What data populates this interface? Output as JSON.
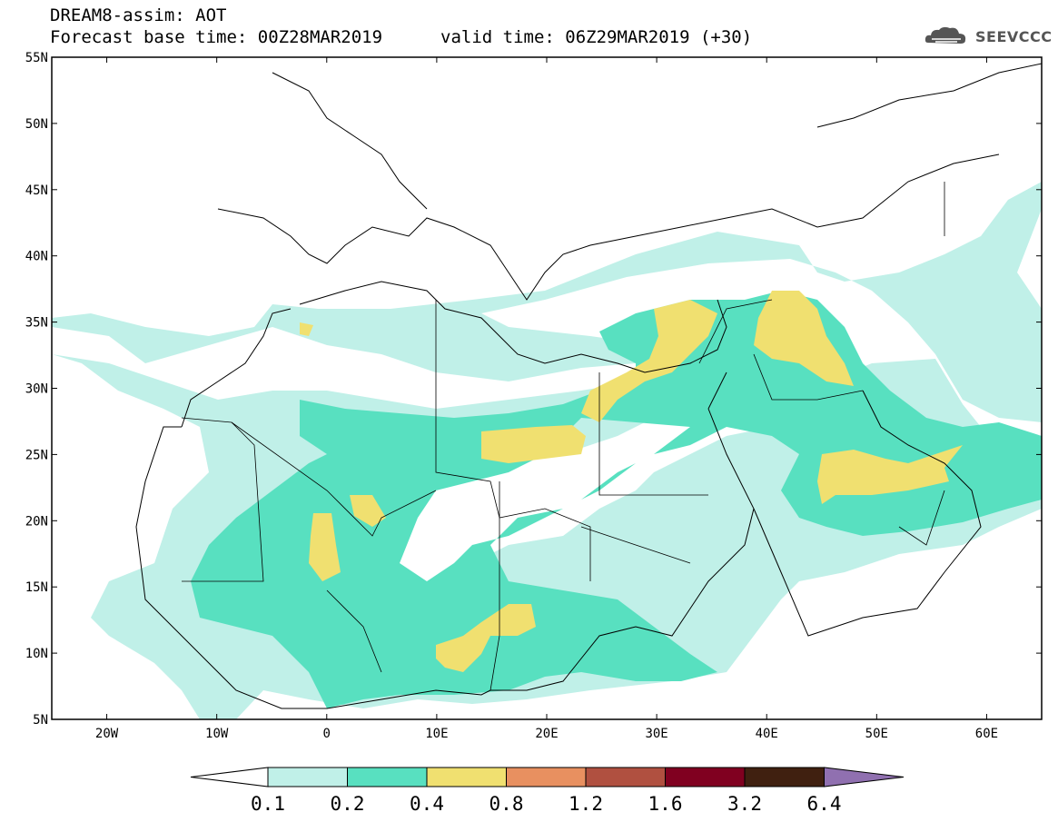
{
  "header": {
    "title": "DREAM8-assim: AOT",
    "base_time": "Forecast base time: 00Z28MAR2019",
    "valid_time": "valid time: 06Z29MAR2019 (+30)",
    "logo_text": "SEEVCCC"
  },
  "map": {
    "lon_range": [
      -25,
      65
    ],
    "lat_range": [
      5,
      55
    ],
    "lat_labels": [
      "55N",
      "50N",
      "45N",
      "40N",
      "35N",
      "30N",
      "25N",
      "20N",
      "15N",
      "10N",
      "5N"
    ],
    "lon_labels": [
      "20W",
      "10W",
      "0",
      "10E",
      "20E",
      "30E",
      "40E",
      "50E",
      "60E"
    ],
    "colors": {
      "c01": "#c0f0e8",
      "c02": "#58e0c0",
      "c04": "#f0e070",
      "coast": "#000000"
    }
  },
  "colorbar": {
    "labels": [
      "0.1",
      "0.2",
      "0.4",
      "0.8",
      "1.2",
      "1.6",
      "3.2",
      "6.4"
    ],
    "colors": [
      "#ffffff",
      "#c0f0e8",
      "#58e0c0",
      "#f0e070",
      "#e89060",
      "#b05040",
      "#800020",
      "#402010",
      "#9070b0"
    ]
  }
}
